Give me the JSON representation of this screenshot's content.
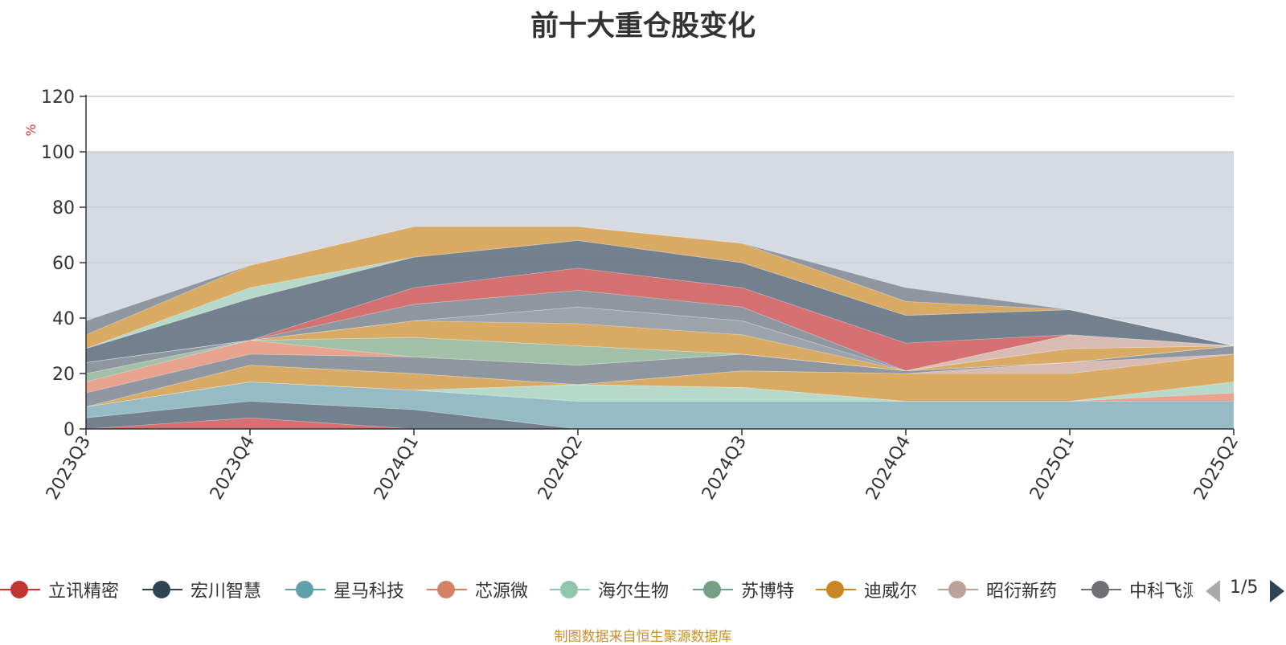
{
  "chart_data": {
    "type": "area",
    "title": "前十大重仓股变化",
    "ylabel": "%",
    "ylim": [
      0,
      120
    ],
    "yticks": [
      0,
      20,
      40,
      60,
      80,
      100,
      120
    ],
    "categories": [
      "2023Q3",
      "2023Q4",
      "2024Q1",
      "2024Q2",
      "2024Q3",
      "2024Q4",
      "2025Q1",
      "2025Q2"
    ],
    "grid": true,
    "legend_position": "bottom",
    "shaded_band": [
      0,
      100
    ],
    "stacked": true,
    "series": [
      {
        "name": "立讯精密",
        "color": "#d46a6a",
        "values": [
          0,
          4,
          0,
          0,
          0,
          0,
          0,
          0
        ]
      },
      {
        "name": "宏川智慧",
        "color": "#6e7b88",
        "values": [
          4,
          6,
          7,
          0,
          0,
          0,
          0,
          0
        ]
      },
      {
        "name": "星马科技",
        "color": "#91bac2",
        "values": [
          4,
          7,
          7,
          10,
          10,
          10,
          10,
          10
        ]
      },
      {
        "name": "芯源微",
        "color": "#e8a088",
        "values": [
          0,
          0,
          0,
          0,
          0,
          0,
          0,
          3
        ]
      },
      {
        "name": "海尔生物",
        "color": "#b5d9c8",
        "values": [
          0,
          0,
          0,
          6,
          5,
          0,
          0,
          4
        ]
      },
      {
        "name": "苏博特",
        "color": "#9fbfa3",
        "values": [
          0,
          0,
          0,
          0,
          0,
          0,
          0,
          0
        ]
      },
      {
        "name": "迪威尔",
        "color": "#d9a85c",
        "values": [
          0,
          6,
          6,
          0,
          6,
          10,
          10,
          10
        ]
      },
      {
        "name": "昭衍新药",
        "color": "#d8b9b0",
        "values": [
          0,
          0,
          0,
          0,
          0,
          0,
          4,
          0
        ]
      },
      {
        "name": "中科飞测",
        "color": "#8a939c",
        "values": [
          5,
          4,
          6,
          7,
          6,
          1,
          0,
          3
        ]
      },
      {
        "name": "",
        "color": "#e8a088",
        "values": [
          4,
          5,
          0,
          0,
          0,
          0,
          0,
          0
        ]
      },
      {
        "name": "",
        "color": "#9fbfa3",
        "values": [
          3,
          0,
          7,
          7,
          0,
          0,
          0,
          0
        ]
      },
      {
        "name": "",
        "color": "#d9a85c",
        "values": [
          0,
          0,
          0,
          0,
          0,
          0,
          0,
          0
        ]
      },
      {
        "name": "",
        "color": "#8a939c",
        "values": [
          4,
          0,
          0,
          0,
          0,
          0,
          0,
          0
        ]
      },
      {
        "name": "",
        "color": "#d9a85c",
        "values": [
          0,
          0,
          6,
          8,
          7,
          0,
          5,
          0
        ]
      },
      {
        "name": "",
        "color": "#9aa0a6",
        "values": [
          0,
          0,
          0,
          6,
          5,
          0,
          0,
          0
        ]
      },
      {
        "name": "",
        "color": "#d8b9b0",
        "values": [
          0,
          0,
          0,
          0,
          0,
          0,
          5,
          0
        ]
      },
      {
        "name": "",
        "color": "#8a939c",
        "values": [
          0,
          0,
          6,
          6,
          5,
          0,
          0,
          0
        ]
      },
      {
        "name": "",
        "color": "#d46a6a",
        "values": [
          0,
          0,
          6,
          8,
          7,
          10,
          0,
          0
        ]
      },
      {
        "name": "",
        "color": "#6e7b88",
        "values": [
          5,
          15,
          11,
          10,
          9,
          10,
          9,
          0
        ]
      },
      {
        "name": "",
        "color": "#b5d9c8",
        "values": [
          0,
          4,
          0,
          0,
          0,
          0,
          0,
          0
        ]
      },
      {
        "name": "",
        "color": "#d9a85c",
        "values": [
          5,
          8,
          11,
          5,
          7,
          5,
          0,
          0
        ]
      },
      {
        "name": "",
        "color": "#8a939c",
        "values": [
          5,
          0,
          0,
          0,
          0,
          5,
          0,
          0
        ]
      }
    ]
  },
  "legend": {
    "items": [
      "立讯精密",
      "宏川智慧",
      "星马科技",
      "芯源微",
      "海尔生物",
      "苏博特",
      "迪威尔",
      "昭衍新药",
      "中科飞测"
    ],
    "colors": [
      "#c23531",
      "#2f4554",
      "#61a0a8",
      "#d48265",
      "#91c7ae",
      "#749f83",
      "#ca8622",
      "#bda29a",
      "#6e7074"
    ],
    "page": "1/5"
  },
  "source_note": "制图数据来自恒生聚源数据库"
}
